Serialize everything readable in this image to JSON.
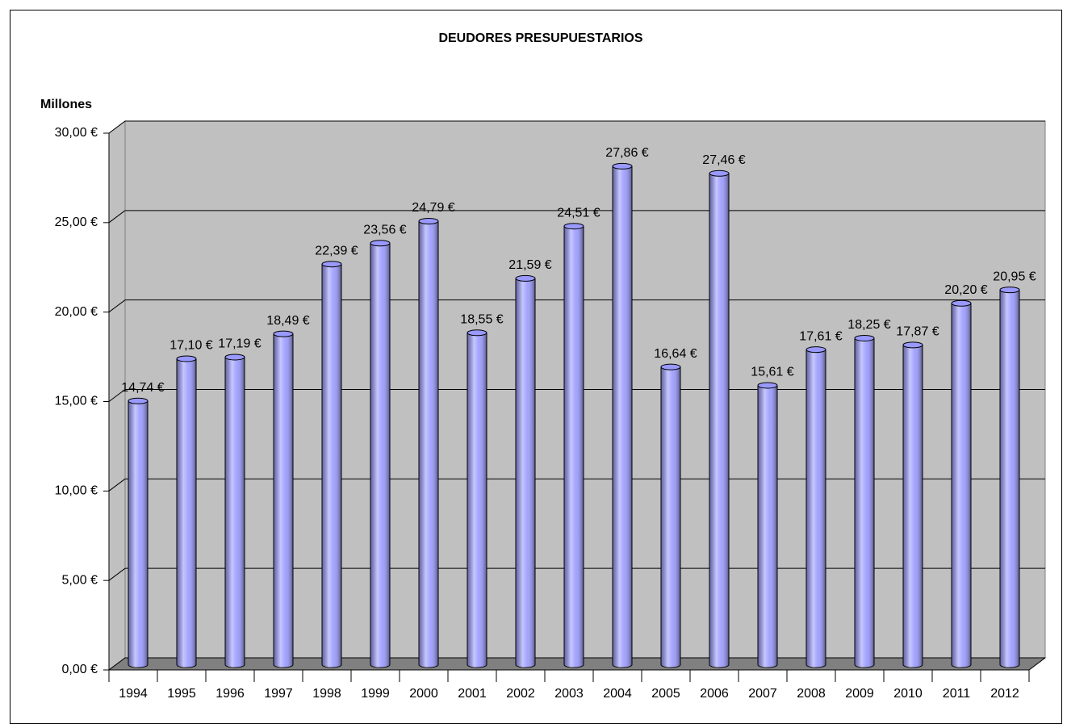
{
  "chart_data": {
    "type": "bar3d",
    "title": "DEUDORES PRESUPUESTARIOS",
    "ylabel": "Millones",
    "categories": [
      "1994",
      "1995",
      "1996",
      "1997",
      "1998",
      "1999",
      "2000",
      "2001",
      "2002",
      "2003",
      "2004",
      "2005",
      "2006",
      "2007",
      "2008",
      "2009",
      "2010",
      "2011",
      "2012"
    ],
    "values": [
      14.74,
      17.1,
      17.19,
      18.49,
      22.39,
      23.56,
      24.79,
      18.55,
      21.59,
      24.51,
      27.86,
      16.64,
      27.46,
      15.61,
      17.61,
      18.25,
      17.87,
      20.2,
      20.95
    ],
    "value_labels": [
      "14,74 €",
      "17,10 €",
      "17,19 €",
      "18,49 €",
      "22,39 €",
      "23,56 €",
      "24,79 €",
      "18,55 €",
      "21,59 €",
      "24,51 €",
      "27,86 €",
      "16,64 €",
      "27,46 €",
      "15,61 €",
      "17,61 €",
      "18,25 €",
      "17,87 €",
      "20,20 €",
      "20,95 €"
    ],
    "color": "#9999ff",
    "ylim": [
      0,
      30
    ],
    "yticks": [
      {
        "value": 0,
        "label": "0,00 €"
      },
      {
        "value": 5,
        "label": "5,00 €"
      },
      {
        "value": 10,
        "label": "10,00 €"
      },
      {
        "value": 15,
        "label": "15,00 €"
      },
      {
        "value": 20,
        "label": "20,00 €"
      },
      {
        "value": 25,
        "label": "25,00 €"
      },
      {
        "value": 30,
        "label": "30,00 €"
      }
    ],
    "grid": true
  }
}
